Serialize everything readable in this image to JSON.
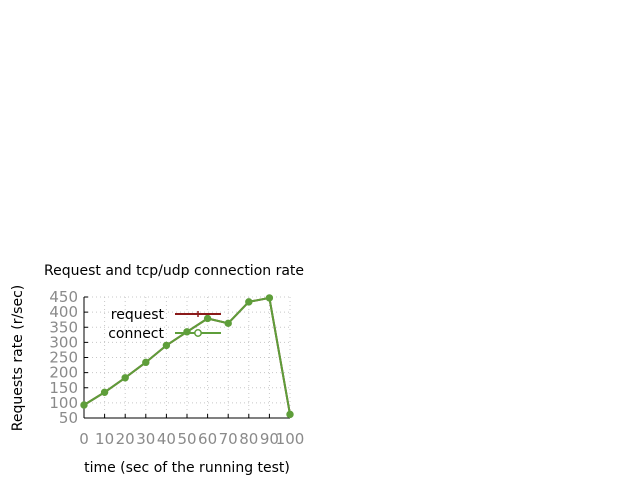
{
  "chart_data": {
    "type": "line",
    "title": "Request and tcp/udp connection rate",
    "xlabel": "time (sec of the running test)",
    "ylabel": "Requests rate (r/sec)",
    "xlim": [
      0,
      100
    ],
    "ylim": [
      50,
      450
    ],
    "x_ticks": [
      0,
      10,
      20,
      30,
      40,
      50,
      60,
      70,
      80,
      90,
      100
    ],
    "x_tick_labels": [
      "0",
      "10",
      "20",
      "30",
      "40",
      "50",
      "60",
      "70",
      "80",
      "90",
      "100"
    ],
    "y_ticks": [
      50,
      100,
      150,
      200,
      250,
      300,
      350,
      400,
      450
    ],
    "y_tick_labels": [
      "50",
      "100",
      "150",
      "200",
      "250",
      "300",
      "350",
      "400",
      "450"
    ],
    "grid": true,
    "legend_position": "top-left",
    "series": [
      {
        "name": "request",
        "color": "#8b1a1a",
        "marker": "plus",
        "x": [
          0,
          10,
          20,
          30,
          40,
          50,
          60,
          70,
          80,
          90,
          100
        ],
        "y": [
          93,
          135,
          183,
          234,
          290,
          335,
          379,
          363,
          434,
          447,
          62
        ]
      },
      {
        "name": "connect",
        "color": "#5e9e3a",
        "marker": "circle",
        "x": [
          0,
          10,
          20,
          30,
          40,
          50,
          60,
          70,
          80,
          90,
          100
        ],
        "y": [
          93,
          135,
          183,
          234,
          290,
          335,
          379,
          363,
          434,
          447,
          62
        ]
      }
    ]
  }
}
